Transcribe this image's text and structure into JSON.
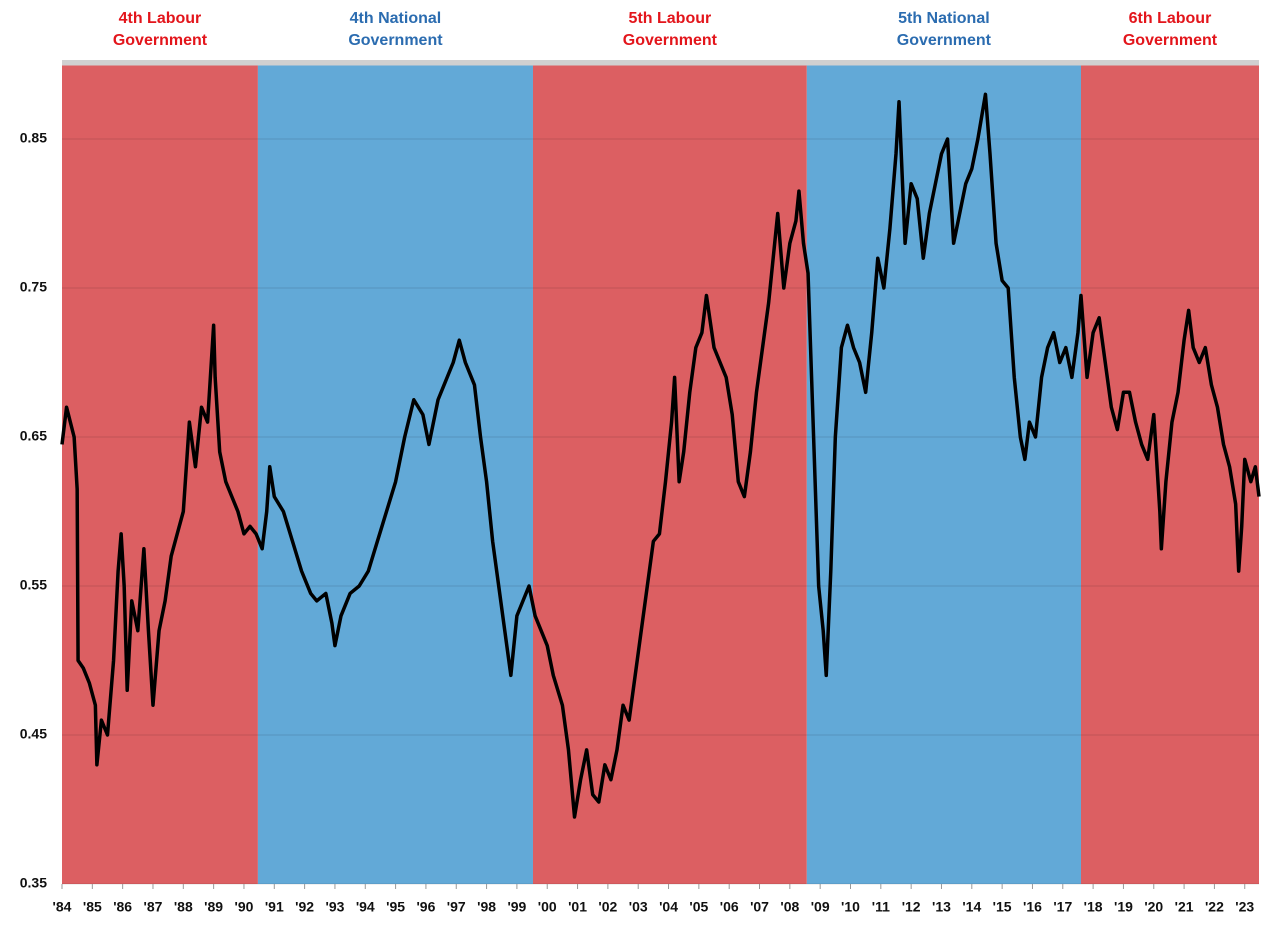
{
  "chart_data": {
    "type": "line",
    "periods": [
      {
        "label": "4th Labour Government",
        "start": 1984,
        "end": 1990.46,
        "color": "#dc5f62",
        "label_color": "#e3151b"
      },
      {
        "label": "4th National Government",
        "start": 1990.46,
        "end": 1999.53,
        "color": "#62a9d7",
        "label_color": "#2b6cb0"
      },
      {
        "label": "5th Labour Government",
        "start": 1999.53,
        "end": 2008.56,
        "color": "#dc5f62",
        "label_color": "#e3151b"
      },
      {
        "label": "5th National Government",
        "start": 2008.56,
        "end": 2017.6,
        "color": "#62a9d7",
        "label_color": "#2b6cb0"
      },
      {
        "label": "6th Labour Government",
        "start": 2017.6,
        "end": 2023.47,
        "color": "#dc5f62",
        "label_color": "#e3151b"
      }
    ],
    "x": [
      1984.0,
      1984.15,
      1984.4,
      1984.5,
      1984.53,
      1984.7,
      1984.9,
      1985.1,
      1985.15,
      1985.3,
      1985.5,
      1985.7,
      1985.85,
      1985.95,
      1986.05,
      1986.15,
      1986.3,
      1986.5,
      1986.7,
      1986.85,
      1987.0,
      1987.2,
      1987.4,
      1987.6,
      1987.8,
      1988.0,
      1988.2,
      1988.4,
      1988.6,
      1988.8,
      1989.0,
      1989.05,
      1989.2,
      1989.4,
      1989.6,
      1989.8,
      1990.0,
      1990.2,
      1990.4,
      1990.6,
      1990.75,
      1990.85,
      1991.0,
      1991.3,
      1991.6,
      1991.9,
      1992.2,
      1992.4,
      1992.7,
      1992.9,
      1993.0,
      1993.2,
      1993.5,
      1993.8,
      1994.1,
      1994.4,
      1994.7,
      1995.0,
      1995.3,
      1995.6,
      1995.9,
      1996.1,
      1996.4,
      1996.7,
      1996.9,
      1997.1,
      1997.3,
      1997.6,
      1997.8,
      1998.0,
      1998.2,
      1998.4,
      1998.6,
      1998.8,
      1999.0,
      1999.2,
      1999.4,
      1999.6,
      1999.8,
      2000.0,
      2000.2,
      2000.5,
      2000.7,
      2000.9,
      2001.1,
      2001.3,
      2001.5,
      2001.7,
      2001.9,
      2002.1,
      2002.3,
      2002.5,
      2002.7,
      2002.9,
      2003.1,
      2003.3,
      2003.5,
      2003.7,
      2003.9,
      2004.1,
      2004.2,
      2004.35,
      2004.5,
      2004.7,
      2004.9,
      2005.1,
      2005.25,
      2005.5,
      2005.7,
      2005.9,
      2006.1,
      2006.3,
      2006.5,
      2006.7,
      2006.9,
      2007.1,
      2007.3,
      2007.5,
      2007.6,
      2007.8,
      2008.0,
      2008.2,
      2008.3,
      2008.45,
      2008.6,
      2008.8,
      2008.95,
      2009.1,
      2009.2,
      2009.35,
      2009.5,
      2009.7,
      2009.9,
      2010.1,
      2010.3,
      2010.5,
      2010.7,
      2010.9,
      2011.1,
      2011.3,
      2011.5,
      2011.6,
      2011.8,
      2012.0,
      2012.2,
      2012.4,
      2012.6,
      2012.8,
      2013.0,
      2013.2,
      2013.4,
      2013.6,
      2013.8,
      2014.0,
      2014.2,
      2014.45,
      2014.6,
      2014.8,
      2015.0,
      2015.2,
      2015.4,
      2015.6,
      2015.75,
      2015.9,
      2016.1,
      2016.3,
      2016.5,
      2016.7,
      2016.9,
      2017.1,
      2017.3,
      2017.5,
      2017.6,
      2017.8,
      2018.0,
      2018.2,
      2018.4,
      2018.6,
      2018.8,
      2019.0,
      2019.2,
      2019.4,
      2019.6,
      2019.8,
      2020.0,
      2020.2,
      2020.25,
      2020.4,
      2020.6,
      2020.8,
      2021.0,
      2021.15,
      2021.3,
      2021.5,
      2021.7,
      2021.9,
      2022.1,
      2022.3,
      2022.5,
      2022.7,
      2022.8,
      2022.9,
      2023.0,
      2023.2,
      2023.35,
      2023.47
    ],
    "series": [
      {
        "color": "#000000",
        "values": [
          0.645,
          0.67,
          0.65,
          0.615,
          0.5,
          0.495,
          0.485,
          0.47,
          0.43,
          0.46,
          0.45,
          0.5,
          0.56,
          0.585,
          0.55,
          0.48,
          0.54,
          0.52,
          0.575,
          0.52,
          0.47,
          0.52,
          0.54,
          0.57,
          0.585,
          0.6,
          0.66,
          0.63,
          0.67,
          0.66,
          0.725,
          0.69,
          0.64,
          0.62,
          0.61,
          0.6,
          0.585,
          0.59,
          0.585,
          0.575,
          0.6,
          0.63,
          0.61,
          0.6,
          0.58,
          0.56,
          0.545,
          0.54,
          0.545,
          0.525,
          0.51,
          0.53,
          0.545,
          0.55,
          0.56,
          0.58,
          0.6,
          0.62,
          0.65,
          0.675,
          0.665,
          0.645,
          0.675,
          0.69,
          0.7,
          0.715,
          0.7,
          0.685,
          0.65,
          0.62,
          0.58,
          0.55,
          0.52,
          0.49,
          0.53,
          0.54,
          0.55,
          0.53,
          0.52,
          0.51,
          0.49,
          0.47,
          0.44,
          0.395,
          0.42,
          0.44,
          0.41,
          0.405,
          0.43,
          0.42,
          0.44,
          0.47,
          0.46,
          0.49,
          0.52,
          0.55,
          0.58,
          0.585,
          0.62,
          0.66,
          0.69,
          0.62,
          0.64,
          0.68,
          0.71,
          0.72,
          0.745,
          0.71,
          0.7,
          0.69,
          0.665,
          0.62,
          0.61,
          0.64,
          0.68,
          0.71,
          0.74,
          0.78,
          0.8,
          0.75,
          0.78,
          0.795,
          0.815,
          0.78,
          0.76,
          0.64,
          0.55,
          0.52,
          0.49,
          0.56,
          0.65,
          0.71,
          0.725,
          0.71,
          0.7,
          0.68,
          0.72,
          0.77,
          0.75,
          0.79,
          0.84,
          0.875,
          0.78,
          0.82,
          0.81,
          0.77,
          0.8,
          0.82,
          0.84,
          0.85,
          0.78,
          0.8,
          0.82,
          0.83,
          0.85,
          0.88,
          0.84,
          0.78,
          0.755,
          0.75,
          0.69,
          0.65,
          0.635,
          0.66,
          0.65,
          0.69,
          0.71,
          0.72,
          0.7,
          0.71,
          0.69,
          0.72,
          0.745,
          0.69,
          0.72,
          0.73,
          0.7,
          0.67,
          0.655,
          0.68,
          0.68,
          0.66,
          0.645,
          0.635,
          0.665,
          0.6,
          0.575,
          0.62,
          0.66,
          0.68,
          0.715,
          0.735,
          0.71,
          0.7,
          0.71,
          0.685,
          0.67,
          0.645,
          0.63,
          0.605,
          0.56,
          0.59,
          0.635,
          0.62,
          0.63,
          0.61
        ]
      }
    ],
    "xlim": [
      1984,
      2023.47
    ],
    "ylim": [
      0.35,
      0.9
    ],
    "yticks": [
      0.35,
      0.45,
      0.55,
      0.65,
      0.75,
      0.85
    ],
    "xticks": [
      {
        "value": 1984,
        "label": "'84"
      },
      {
        "value": 1985,
        "label": "'85"
      },
      {
        "value": 1986,
        "label": "'86"
      },
      {
        "value": 1987,
        "label": "'87"
      },
      {
        "value": 1988,
        "label": "'88"
      },
      {
        "value": 1989,
        "label": "'89"
      },
      {
        "value": 1990,
        "label": "'90"
      },
      {
        "value": 1991,
        "label": "'91"
      },
      {
        "value": 1992,
        "label": "'92"
      },
      {
        "value": 1993,
        "label": "'93"
      },
      {
        "value": 1994,
        "label": "'94"
      },
      {
        "value": 1995,
        "label": "'95"
      },
      {
        "value": 1996,
        "label": "'96"
      },
      {
        "value": 1997,
        "label": "'97"
      },
      {
        "value": 1998,
        "label": "'98"
      },
      {
        "value": 1999,
        "label": "'99"
      },
      {
        "value": 2000,
        "label": "'00"
      },
      {
        "value": 2001,
        "label": "'01"
      },
      {
        "value": 2002,
        "label": "'02"
      },
      {
        "value": 2003,
        "label": "'03"
      },
      {
        "value": 2004,
        "label": "'04"
      },
      {
        "value": 2005,
        "label": "'05"
      },
      {
        "value": 2006,
        "label": "'06"
      },
      {
        "value": 2007,
        "label": "'07"
      },
      {
        "value": 2008,
        "label": "'08"
      },
      {
        "value": 2009,
        "label": "'09"
      },
      {
        "value": 2010,
        "label": "'10"
      },
      {
        "value": 2011,
        "label": "'11"
      },
      {
        "value": 2012,
        "label": "'12"
      },
      {
        "value": 2013,
        "label": "'13"
      },
      {
        "value": 2014,
        "label": "'14"
      },
      {
        "value": 2015,
        "label": "'15"
      },
      {
        "value": 2016,
        "label": "'16"
      },
      {
        "value": 2017,
        "label": "'17"
      },
      {
        "value": 2018,
        "label": "'18"
      },
      {
        "value": 2019,
        "label": "'19"
      },
      {
        "value": 2020,
        "label": "'20"
      },
      {
        "value": 2021,
        "label": "'21"
      },
      {
        "value": 2022,
        "label": "'22"
      },
      {
        "value": 2023,
        "label": "'23"
      }
    ],
    "grid": true
  }
}
